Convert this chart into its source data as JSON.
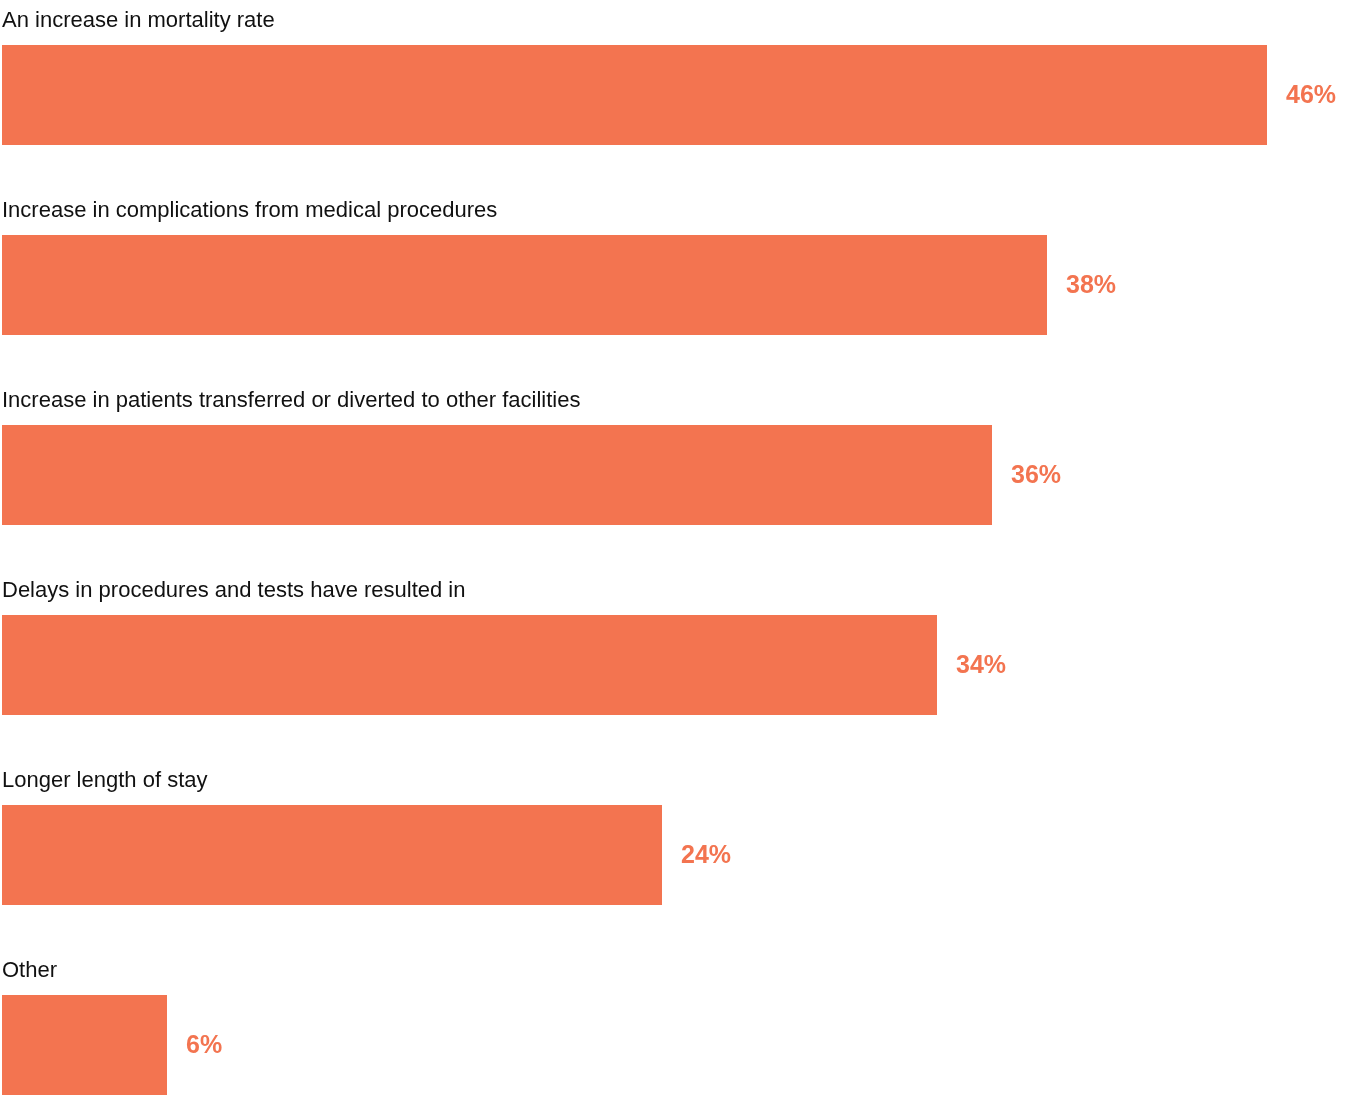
{
  "chart_data": {
    "type": "bar",
    "orientation": "horizontal",
    "categories": [
      "An increase in mortality rate",
      "Increase in complications from medical procedures",
      "Increase in patients transferred or diverted to other facilities",
      "Delays in procedures and tests have resulted in",
      "Longer length of stay",
      "Other"
    ],
    "values": [
      46,
      38,
      36,
      34,
      24,
      6
    ],
    "value_labels": [
      "46%",
      "38%",
      "36%",
      "34%",
      "24%",
      "6%"
    ],
    "color": "#f37450"
  }
}
